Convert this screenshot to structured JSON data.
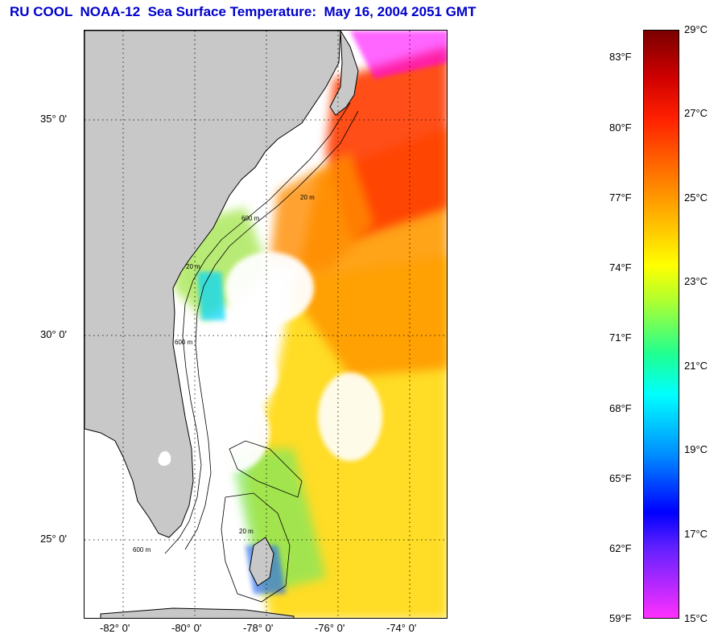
{
  "title": "RU COOL  NOAA-12  Sea Surface Temperature:  May 16, 2004 2051 GMT",
  "map": {
    "lat_labels": [
      "35° 0'",
      "30° 0'",
      "25° 0'"
    ],
    "lon_labels": [
      "-82° 0'",
      "-80° 0'",
      "-78° 0'",
      "-76° 0'",
      "-74° 0'"
    ],
    "isobath_labels": [
      "20 m",
      "60 m",
      "600 m",
      "20 m",
      "600 m",
      "20 m",
      "600 m"
    ]
  },
  "colorbar": {
    "fahrenheit_labels": [
      "83°F",
      "80°F",
      "77°F",
      "74°F",
      "71°F",
      "68°F",
      "65°F",
      "62°F",
      "59°F"
    ],
    "celsius_labels": [
      "29°C",
      "27°C",
      "25°C",
      "23°C",
      "21°C",
      "19°C",
      "17°C",
      "15°C"
    ],
    "range_c": [
      15,
      29
    ],
    "range_f": [
      59,
      84.2
    ]
  },
  "colors": {
    "title": "#0000cc",
    "land": "#c8c8c8",
    "warm": "#ff4500",
    "mid": "#ffd700",
    "cool": "#00e5ff",
    "cold": "#0000ff",
    "coldest": "#ff00ff"
  }
}
